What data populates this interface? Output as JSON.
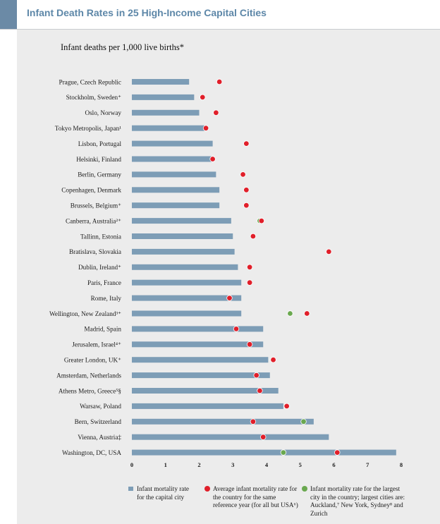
{
  "header": {
    "title": "Infant Death Rates in 25 High-Income Capital Cities"
  },
  "colors": {
    "bar": "#7d9db6",
    "country_dot": "#e01f2a",
    "largest_city_dot": "#6aa84f",
    "title": "#5d87a8"
  },
  "chart_data": {
    "type": "bar",
    "orientation": "horizontal",
    "title": "Infant deaths per 1,000 live births*",
    "xlim": [
      0,
      8
    ],
    "xticks": [
      "0",
      "1",
      "2",
      "3",
      "4",
      "5",
      "6",
      "7",
      "8"
    ],
    "categories": [
      "Prague, Czech Republic",
      "Stockholm, Sweden⁺",
      "Oslo, Norway",
      "Tokyo Metropolis, Japan¹",
      "Lisbon, Portugal",
      "Helsinki, Finland",
      "Berlin, Germany",
      "Copenhagen, Denmark",
      "Brussels, Belgium⁺",
      "Canberra, Australia²⁺",
      "Tallinn, Estonia",
      "Bratislava, Slovakia",
      "Dublin, Ireland⁺",
      "Paris, France",
      "Rome, Italy",
      "Wellington, New Zealand³⁺",
      "Madrid, Spain",
      "Jerusalem, Israel⁴⁺",
      "Greater London, UK⁺",
      "Amsterdam, Netherlands",
      "Athens Metro, Greece⁵§",
      "Warsaw, Poland",
      "Bern, Switzerland",
      "Vienna, Austria‡",
      "Washington, DC, USA"
    ],
    "series": [
      {
        "name": "Infant mortality rate for the capital city",
        "values": [
          1.7,
          1.85,
          2.0,
          2.15,
          2.4,
          2.4,
          2.5,
          2.6,
          2.6,
          2.95,
          3.0,
          3.05,
          3.15,
          3.25,
          3.25,
          3.25,
          3.9,
          3.9,
          4.05,
          4.1,
          4.35,
          4.5,
          5.4,
          5.85,
          7.85
        ]
      },
      {
        "name": "Average infant mortality rate for the country for the same reference year (for all but USA⁶)",
        "values": [
          2.6,
          2.1,
          2.5,
          2.2,
          3.4,
          2.4,
          3.3,
          3.4,
          3.4,
          3.85,
          3.6,
          5.85,
          3.5,
          3.5,
          2.9,
          5.2,
          3.1,
          3.5,
          4.2,
          3.7,
          3.8,
          4.6,
          3.6,
          3.9,
          6.1
        ]
      },
      {
        "name": "Infant mortality rate for the largest city in the country; largest cities are: Auckland,⁷ New York, Sydney⁸ and Zurich",
        "values": [
          null,
          null,
          null,
          null,
          null,
          null,
          null,
          null,
          null,
          3.8,
          null,
          null,
          null,
          null,
          null,
          4.7,
          null,
          null,
          null,
          null,
          null,
          null,
          5.1,
          null,
          4.5
        ]
      }
    ],
    "grid": false,
    "legend_position": "bottom"
  },
  "legend": {
    "bar_label": "Infant mortality rate for the capital city",
    "country_label": "Average infant mortality rate for the country for the same reference year (for all but USA⁶)",
    "largest_label": "Infant mortality rate for the largest city in the country; largest cities are: Auckland,⁷ New York, Sydney⁸ and Zurich"
  }
}
